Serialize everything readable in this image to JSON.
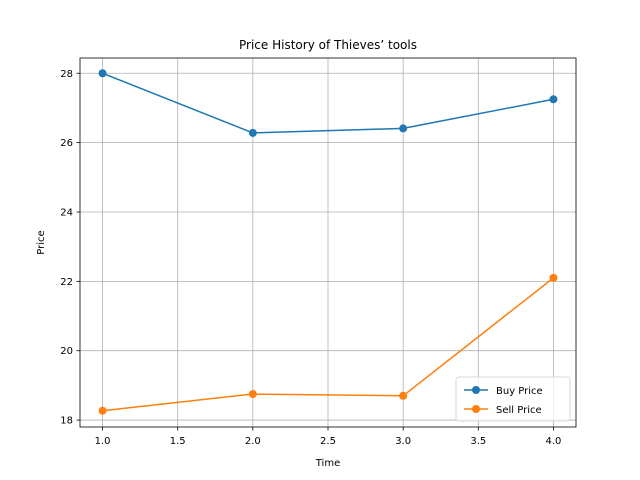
{
  "chart_data": {
    "type": "line",
    "title": "Price History of Thieves’ tools",
    "xlabel": "Time",
    "ylabel": "Price",
    "x": [
      1.0,
      2.0,
      3.0,
      4.0
    ],
    "xlim": [
      0.85,
      4.15
    ],
    "ylim": [
      17.8,
      28.44
    ],
    "x_ticks": [
      1.0,
      1.5,
      2.0,
      2.5,
      3.0,
      3.5,
      4.0
    ],
    "x_tick_labels": [
      "1.0",
      "1.5",
      "2.0",
      "2.5",
      "3.0",
      "3.5",
      "4.0"
    ],
    "y_ticks": [
      18,
      20,
      22,
      24,
      26,
      28
    ],
    "y_tick_labels": [
      "18",
      "20",
      "22",
      "24",
      "26",
      "28"
    ],
    "grid": true,
    "legend_position": "bottom-right",
    "series": [
      {
        "name": "Buy Price",
        "color": "#1f77b4",
        "marker": "circle",
        "values": [
          28.0,
          26.28,
          26.41,
          27.25
        ]
      },
      {
        "name": "Sell Price",
        "color": "#ff7f0e",
        "marker": "circle",
        "values": [
          18.27,
          18.75,
          18.7,
          22.1
        ]
      }
    ]
  }
}
